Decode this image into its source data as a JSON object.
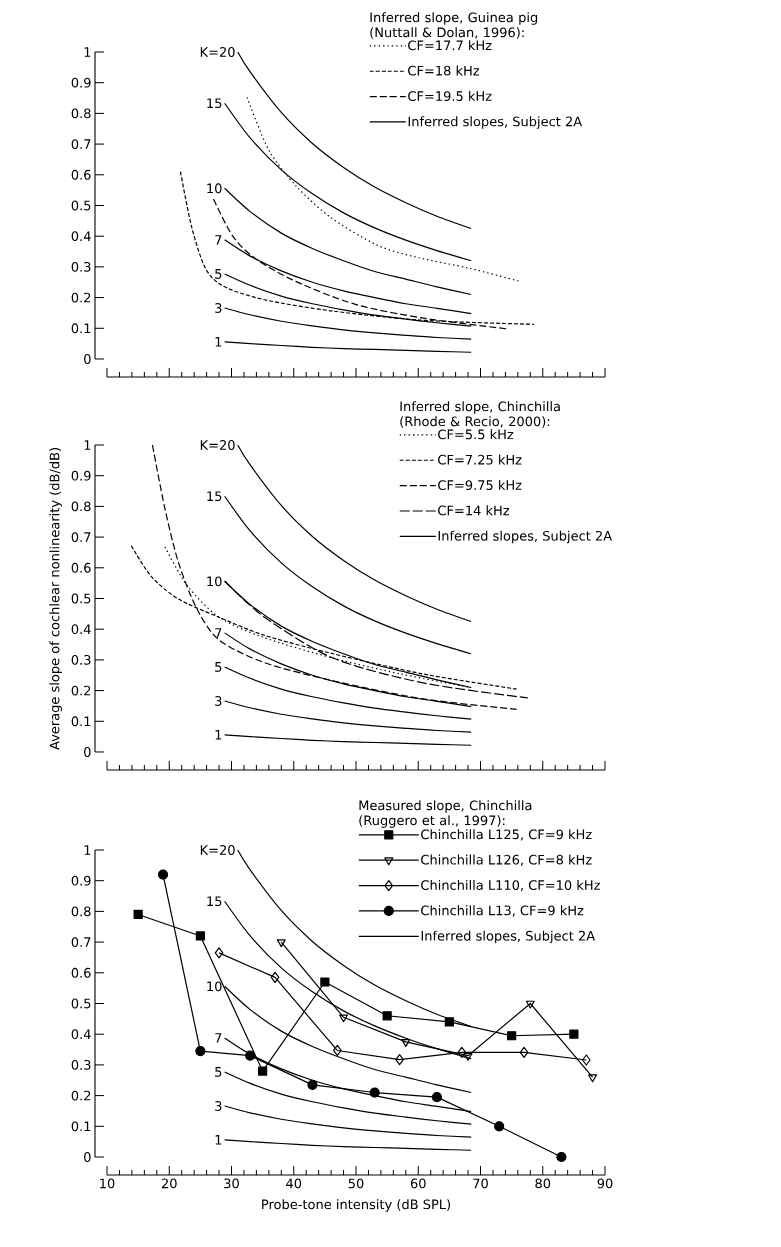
{
  "chart_data": [
    {
      "type": "line",
      "xlim": [
        10,
        90
      ],
      "ylim": [
        0,
        1
      ],
      "xticks": [
        10,
        20,
        30,
        40,
        50,
        60,
        70,
        80,
        90
      ],
      "yticks": [
        0,
        0.1,
        0.2,
        0.3,
        0.4,
        0.5,
        0.6,
        0.7,
        0.8,
        0.9,
        1
      ],
      "tick_labels": "y",
      "legend": "top right",
      "legend_title": "Inferred slope, Guinea pig (Nuttall & Dolan, 1996):",
      "annotations": [
        "Inferred slopes, Subject 2A"
      ],
      "series": [
        {
          "name": "K=20",
          "color": "#000000",
          "line_style": "solid",
          "x": [
            31,
            33,
            38,
            43,
            48,
            53,
            58,
            63,
            68.5
          ],
          "values": [
            1.0,
            0.935,
            0.803,
            0.702,
            0.624,
            0.56,
            0.509,
            0.465,
            0.425
          ]
        },
        {
          "name": "15",
          "color": "#000000",
          "line_style": "solid",
          "x": [
            28.9,
            33,
            38,
            43,
            48,
            53,
            58,
            63,
            68.5
          ],
          "values": [
            0.833,
            0.72,
            0.616,
            0.538,
            0.476,
            0.427,
            0.387,
            0.353,
            0.32
          ]
        },
        {
          "name": "10",
          "color": "#000000",
          "line_style": "solid",
          "x": [
            28.9,
            33,
            38,
            43,
            48,
            53,
            58,
            63,
            68.5
          ],
          "values": [
            0.556,
            0.48,
            0.41,
            0.36,
            0.32,
            0.285,
            0.26,
            0.235,
            0.21
          ]
        },
        {
          "name": "7",
          "color": "#000000",
          "line_style": "solid",
          "x": [
            28.9,
            33,
            38,
            43,
            48,
            53,
            58,
            63,
            68.5
          ],
          "values": [
            0.388,
            0.335,
            0.287,
            0.25,
            0.222,
            0.2,
            0.18,
            0.165,
            0.148
          ]
        },
        {
          "name": "5",
          "color": "#000000",
          "line_style": "solid",
          "x": [
            28.9,
            33,
            38,
            43,
            48,
            53,
            58,
            63,
            68.5
          ],
          "values": [
            0.277,
            0.24,
            0.205,
            0.18,
            0.16,
            0.143,
            0.13,
            0.118,
            0.107
          ]
        },
        {
          "name": "3",
          "color": "#000000",
          "line_style": "solid",
          "x": [
            28.9,
            33,
            38,
            43,
            48,
            53,
            58,
            63,
            68.5
          ],
          "values": [
            0.166,
            0.144,
            0.123,
            0.108,
            0.095,
            0.085,
            0.077,
            0.07,
            0.065
          ]
        },
        {
          "name": "1",
          "color": "#000000",
          "line_style": "solid",
          "x": [
            28.9,
            33,
            38,
            43,
            48,
            53,
            58,
            63,
            68.5
          ],
          "values": [
            0.056,
            0.05,
            0.044,
            0.038,
            0.034,
            0.031,
            0.028,
            0.025,
            0.022
          ]
        },
        {
          "name": "CF=17.7 kHz",
          "color": "#000000",
          "line_style": "dotted",
          "x": [
            32.5,
            36,
            40.4,
            46,
            53.5,
            60,
            68.1,
            76.5
          ],
          "values": [
            0.852,
            0.68,
            0.563,
            0.46,
            0.37,
            0.33,
            0.296,
            0.252
          ]
        },
        {
          "name": "CF=18  kHz",
          "color": "#000000",
          "line_style": "dashed",
          "x": [
            21.8,
            23.6,
            25.8,
            28.7,
            35.3,
            46.3,
            60.8,
            78.6
          ],
          "values": [
            0.61,
            0.43,
            0.296,
            0.237,
            0.193,
            0.156,
            0.126,
            0.113
          ]
        },
        {
          "name": "CF=19.5 kHz",
          "color": "#000000",
          "line_style": "dashed",
          "x": [
            27.1,
            30.2,
            33.9,
            40.4,
            49.9,
            60.8,
            74.3
          ],
          "values": [
            0.521,
            0.4,
            0.326,
            0.252,
            0.178,
            0.133,
            0.098
          ]
        }
      ]
    },
    {
      "type": "line",
      "xlim": [
        10,
        90
      ],
      "ylim": [
        0,
        1
      ],
      "xticks": [
        10,
        20,
        30,
        40,
        50,
        60,
        70,
        80,
        90
      ],
      "yticks": [
        0,
        0.1,
        0.2,
        0.3,
        0.4,
        0.5,
        0.6,
        0.7,
        0.8,
        0.9,
        1
      ],
      "tick_labels": "y",
      "ylabel": "Average slope of cochlear nonlinearity (dB/dB)",
      "legend": "top right",
      "legend_title": "Inferred slope, Chinchilla (Rhode & Recio, 2000):",
      "annotations": [
        "Inferred slopes, Subject 2A"
      ],
      "series": [
        {
          "name": "K=20",
          "color": "#000000",
          "line_style": "solid",
          "x": [
            31,
            33,
            38,
            43,
            48,
            53,
            58,
            63,
            68.5
          ],
          "values": [
            1.0,
            0.935,
            0.803,
            0.702,
            0.624,
            0.56,
            0.509,
            0.465,
            0.425
          ]
        },
        {
          "name": "15",
          "color": "#000000",
          "line_style": "solid",
          "x": [
            28.9,
            33,
            38,
            43,
            48,
            53,
            58,
            63,
            68.5
          ],
          "values": [
            0.833,
            0.72,
            0.616,
            0.538,
            0.476,
            0.427,
            0.387,
            0.353,
            0.32
          ]
        },
        {
          "name": "10",
          "color": "#000000",
          "line_style": "solid",
          "x": [
            28.9,
            33,
            38,
            43,
            48,
            53,
            58,
            63,
            68.5
          ],
          "values": [
            0.556,
            0.48,
            0.41,
            0.36,
            0.32,
            0.285,
            0.26,
            0.235,
            0.21
          ]
        },
        {
          "name": "7",
          "color": "#000000",
          "line_style": "solid",
          "x": [
            28.9,
            33,
            38,
            43,
            48,
            53,
            58,
            63,
            68.5
          ],
          "values": [
            0.388,
            0.335,
            0.287,
            0.25,
            0.222,
            0.2,
            0.18,
            0.165,
            0.148
          ]
        },
        {
          "name": "5",
          "color": "#000000",
          "line_style": "solid",
          "x": [
            28.9,
            33,
            38,
            43,
            48,
            53,
            58,
            63,
            68.5
          ],
          "values": [
            0.277,
            0.24,
            0.205,
            0.18,
            0.16,
            0.143,
            0.13,
            0.118,
            0.107
          ]
        },
        {
          "name": "3",
          "color": "#000000",
          "line_style": "solid",
          "x": [
            28.9,
            33,
            38,
            43,
            48,
            53,
            58,
            63,
            68.5
          ],
          "values": [
            0.166,
            0.144,
            0.123,
            0.108,
            0.095,
            0.085,
            0.077,
            0.07,
            0.065
          ]
        },
        {
          "name": "1",
          "color": "#000000",
          "line_style": "solid",
          "x": [
            28.9,
            33,
            38,
            43,
            48,
            53,
            58,
            63,
            68.5
          ],
          "values": [
            0.056,
            0.05,
            0.044,
            0.038,
            0.034,
            0.031,
            0.028,
            0.025,
            0.022
          ]
        },
        {
          "name": "CF=5.5  kHz",
          "color": "#000000",
          "line_style": "dotted",
          "x": [
            19.3,
            22.9,
            28,
            35.3,
            46.3,
            57.2,
            68.5
          ],
          "values": [
            0.668,
            0.542,
            0.439,
            0.372,
            0.306,
            0.254,
            0.21
          ]
        },
        {
          "name": "CF=7.25  kHz",
          "color": "#000000",
          "line_style": "dashed",
          "x": [
            13.9,
            17.1,
            21.5,
            28,
            35.3,
            46.3,
            60.8,
            75.8
          ],
          "values": [
            0.672,
            0.572,
            0.498,
            0.439,
            0.38,
            0.32,
            0.254,
            0.205
          ]
        },
        {
          "name": "CF=9.75  kHz",
          "color": "#000000",
          "line_style": "dashed",
          "x": [
            17.3,
            19.3,
            21.5,
            24.4,
            28,
            35.3,
            46.3,
            60.8,
            75.8
          ],
          "values": [
            1.0,
            0.793,
            0.616,
            0.468,
            0.365,
            0.291,
            0.232,
            0.173,
            0.139
          ]
        },
        {
          "name": "CF=14 kHz",
          "color": "#000000",
          "line_style": "dashed",
          "x": [
            28.9,
            35.3,
            46.3,
            60.8,
            77.6
          ],
          "values": [
            0.557,
            0.439,
            0.306,
            0.225,
            0.176
          ]
        }
      ]
    },
    {
      "type": "line",
      "xlim": [
        10,
        90
      ],
      "ylim": [
        0,
        1
      ],
      "xticks": [
        10,
        20,
        30,
        40,
        50,
        60,
        70,
        80,
        90
      ],
      "yticks": [
        0,
        0.1,
        0.2,
        0.3,
        0.4,
        0.5,
        0.6,
        0.7,
        0.8,
        0.9,
        1
      ],
      "xlabel": "Probe-tone intensity (dB SPL)",
      "legend": "top right",
      "legend_title": "Measured slope, Chinchilla (Ruggero et al., 1997):",
      "annotations": [
        "Inferred slopes, Subject 2A"
      ],
      "series": [
        {
          "name": "K=20",
          "color": "#000000",
          "line_style": "solid",
          "x": [
            31,
            33,
            38,
            43,
            48,
            53,
            58,
            63,
            68.5
          ],
          "values": [
            1.0,
            0.935,
            0.803,
            0.702,
            0.624,
            0.56,
            0.509,
            0.465,
            0.425
          ]
        },
        {
          "name": "15",
          "color": "#000000",
          "line_style": "solid",
          "x": [
            28.9,
            33,
            38,
            43,
            48,
            53,
            58,
            63,
            68.5
          ],
          "values": [
            0.833,
            0.72,
            0.616,
            0.538,
            0.476,
            0.427,
            0.387,
            0.353,
            0.32
          ]
        },
        {
          "name": "10",
          "color": "#000000",
          "line_style": "solid",
          "x": [
            28.9,
            33,
            38,
            43,
            48,
            53,
            58,
            63,
            68.5
          ],
          "values": [
            0.556,
            0.48,
            0.41,
            0.36,
            0.32,
            0.285,
            0.26,
            0.235,
            0.21
          ]
        },
        {
          "name": "7",
          "color": "#000000",
          "line_style": "solid",
          "x": [
            28.9,
            33,
            38,
            43,
            48,
            53,
            58,
            63,
            68.5
          ],
          "values": [
            0.388,
            0.335,
            0.287,
            0.25,
            0.222,
            0.2,
            0.18,
            0.165,
            0.148
          ]
        },
        {
          "name": "5",
          "color": "#000000",
          "line_style": "solid",
          "x": [
            28.9,
            33,
            38,
            43,
            48,
            53,
            58,
            63,
            68.5
          ],
          "values": [
            0.277,
            0.24,
            0.205,
            0.18,
            0.16,
            0.143,
            0.13,
            0.118,
            0.107
          ]
        },
        {
          "name": "3",
          "color": "#000000",
          "line_style": "solid",
          "x": [
            28.9,
            33,
            38,
            43,
            48,
            53,
            58,
            63,
            68.5
          ],
          "values": [
            0.166,
            0.144,
            0.123,
            0.108,
            0.095,
            0.085,
            0.077,
            0.07,
            0.065
          ]
        },
        {
          "name": "1",
          "color": "#000000",
          "line_style": "solid",
          "x": [
            28.9,
            33,
            38,
            43,
            48,
            53,
            58,
            63,
            68.5
          ],
          "values": [
            0.056,
            0.05,
            0.044,
            0.038,
            0.034,
            0.031,
            0.028,
            0.025,
            0.022
          ]
        },
        {
          "name": "Chinchilla L125, CF=9 kHz",
          "color": "#000000",
          "line_style": "solid",
          "marker": "square",
          "x": [
            15,
            25,
            35,
            45,
            55,
            65,
            75,
            85
          ],
          "values": [
            0.79,
            0.72,
            0.28,
            0.57,
            0.46,
            0.44,
            0.395,
            0.4
          ]
        },
        {
          "name": "Chinchilla L126, CF=8 kHz",
          "color": "#000000",
          "line_style": "solid",
          "marker": "triangle",
          "x": [
            38,
            48,
            58,
            68,
            78,
            88
          ],
          "values": [
            0.7,
            0.455,
            0.375,
            0.33,
            0.5,
            0.26
          ]
        },
        {
          "name": "Chinchilla L110, CF=10 kHz",
          "color": "#000000",
          "line_style": "solid",
          "marker": "diamond",
          "x": [
            28,
            37,
            47,
            57,
            67,
            77,
            87
          ],
          "values": [
            0.665,
            0.585,
            0.347,
            0.317,
            0.341,
            0.341,
            0.316
          ]
        },
        {
          "name": "Chinchilla L13, CF=9 kHz",
          "color": "#000000",
          "line_style": "solid",
          "marker": "circle",
          "x": [
            19,
            25,
            33,
            43,
            53,
            63,
            73,
            83
          ],
          "values": [
            0.92,
            0.345,
            0.33,
            0.235,
            0.21,
            0.195,
            0.1,
            0.0
          ]
        }
      ]
    }
  ]
}
